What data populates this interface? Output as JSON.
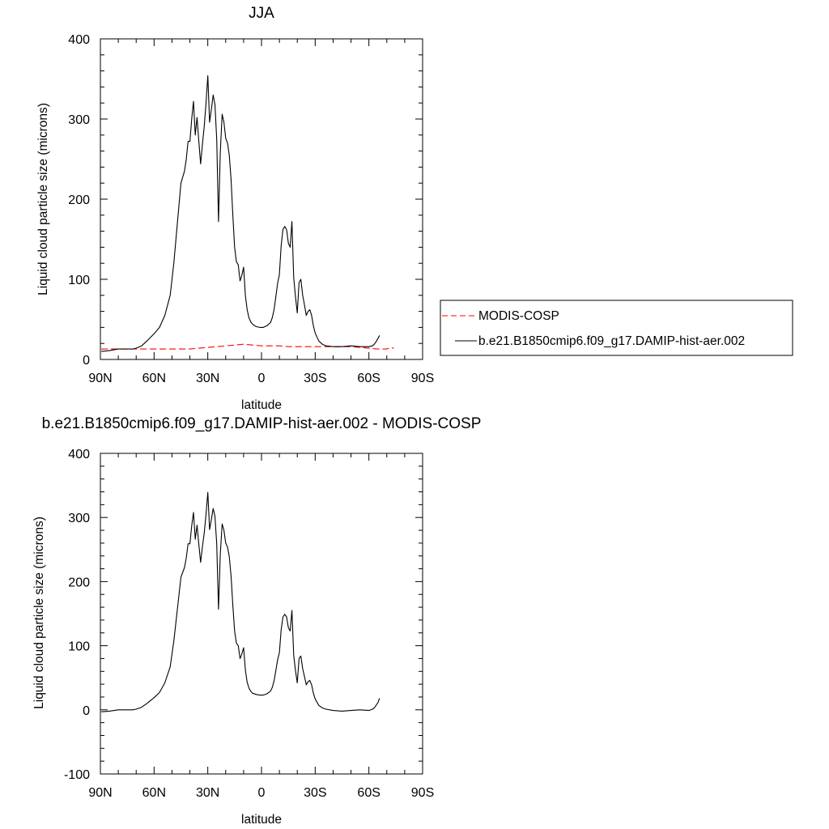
{
  "chart_data": [
    {
      "type": "line",
      "title": "JJA",
      "xlabel": "latitude",
      "ylabel": "Liquid cloud particle size (microns)",
      "xlim": [
        90,
        -90
      ],
      "ylim": [
        0,
        400
      ],
      "xticks": [
        90,
        60,
        30,
        0,
        -30,
        -60,
        -90
      ],
      "xtick_labels": [
        "90N",
        "60N",
        "30N",
        "0",
        "30S",
        "60S",
        "90S"
      ],
      "yticks": [
        0,
        100,
        200,
        300,
        400
      ],
      "ytick_labels": [
        "0",
        "100",
        "200",
        "300",
        "400"
      ],
      "legend_position": "right",
      "series": [
        {
          "name": "MODIS-COSP",
          "color": "#ff0000",
          "dash": "dashed",
          "points": [
            [
              89.5,
              13
            ],
            [
              85,
              13
            ],
            [
              80,
              13
            ],
            [
              75,
              13
            ],
            [
              70,
              13
            ],
            [
              65,
              13
            ],
            [
              60,
              13
            ],
            [
              55,
              13
            ],
            [
              50,
              13
            ],
            [
              45,
              13
            ],
            [
              40,
              13
            ],
            [
              35,
              14
            ],
            [
              30,
              15
            ],
            [
              25,
              16
            ],
            [
              20,
              17
            ],
            [
              15,
              18
            ],
            [
              10,
              19
            ],
            [
              5,
              18
            ],
            [
              0,
              17
            ],
            [
              -5,
              17
            ],
            [
              -10,
              17
            ],
            [
              -15,
              16
            ],
            [
              -20,
              16
            ],
            [
              -25,
              16
            ],
            [
              -30,
              16
            ],
            [
              -35,
              16
            ],
            [
              -40,
              16
            ],
            [
              -45,
              16
            ],
            [
              -50,
              16
            ],
            [
              -55,
              15
            ],
            [
              -60,
              14
            ],
            [
              -65,
              13
            ],
            [
              -70,
              13
            ],
            [
              -72,
              15
            ],
            [
              -74,
              14
            ]
          ]
        },
        {
          "name": "b.e21.B1850cmip6.f09_g17.DAMIP-hist-aer.002",
          "color": "#000000",
          "dash": "solid",
          "points": [
            [
              89.5,
              10
            ],
            [
              85,
              11
            ],
            [
              80,
              13
            ],
            [
              75,
              13
            ],
            [
              72,
              13
            ],
            [
              70,
              14
            ],
            [
              67,
              17
            ],
            [
              64,
              23
            ],
            [
              60,
              32
            ],
            [
              57,
              40
            ],
            [
              54,
              55
            ],
            [
              51,
              80
            ],
            [
              49,
              120
            ],
            [
              47,
              170
            ],
            [
              45,
              220
            ],
            [
              43,
              235
            ],
            [
              42,
              250
            ],
            [
              41,
              272
            ],
            [
              40,
              272
            ],
            [
              39,
              300
            ],
            [
              38,
              322
            ],
            [
              37,
              280
            ],
            [
              36,
              302
            ],
            [
              35,
              272
            ],
            [
              34,
              244
            ],
            [
              33,
              268
            ],
            [
              32,
              290
            ],
            [
              31,
              320
            ],
            [
              30,
              354
            ],
            [
              29,
              296
            ],
            [
              28,
              312
            ],
            [
              27,
              330
            ],
            [
              26,
              318
            ],
            [
              25,
              275
            ],
            [
              24,
              172
            ],
            [
              23,
              258
            ],
            [
              22,
              306
            ],
            [
              21,
              296
            ],
            [
              20,
              276
            ],
            [
              19,
              270
            ],
            [
              18,
              255
            ],
            [
              17,
              225
            ],
            [
              16,
              180
            ],
            [
              15,
              140
            ],
            [
              14,
              122
            ],
            [
              13,
              118
            ],
            [
              12,
              98
            ],
            [
              11,
              105
            ],
            [
              10,
              115
            ],
            [
              9,
              80
            ],
            [
              8,
              62
            ],
            [
              7,
              52
            ],
            [
              6,
              47
            ],
            [
              5,
              44
            ],
            [
              3,
              41
            ],
            [
              1,
              40
            ],
            [
              -1,
              40
            ],
            [
              -3,
              42
            ],
            [
              -5,
              46
            ],
            [
              -6,
              52
            ],
            [
              -7,
              62
            ],
            [
              -8,
              78
            ],
            [
              -9,
              95
            ],
            [
              -10,
              106
            ],
            [
              -11,
              142
            ],
            [
              -12,
              162
            ],
            [
              -13,
              166
            ],
            [
              -14,
              162
            ],
            [
              -15,
              145
            ],
            [
              -16,
              140
            ],
            [
              -17,
              172
            ],
            [
              -18,
              102
            ],
            [
              -19,
              78
            ],
            [
              -20,
              58
            ],
            [
              -21,
              96
            ],
            [
              -22,
              100
            ],
            [
              -23,
              80
            ],
            [
              -24,
              68
            ],
            [
              -25,
              55
            ],
            [
              -26,
              60
            ],
            [
              -27,
              62
            ],
            [
              -28,
              55
            ],
            [
              -29,
              42
            ],
            [
              -30,
              33
            ],
            [
              -31,
              28
            ],
            [
              -32,
              23
            ],
            [
              -34,
              19
            ],
            [
              -36,
              17
            ],
            [
              -40,
              16
            ],
            [
              -45,
              16
            ],
            [
              -50,
              17
            ],
            [
              -55,
              16
            ],
            [
              -60,
              16
            ],
            [
              -62,
              17
            ],
            [
              -63,
              19
            ],
            [
              -64,
              22
            ],
            [
              -65,
              26
            ],
            [
              -66,
              30
            ]
          ]
        }
      ]
    },
    {
      "type": "line",
      "title": "b.e21.B1850cmip6.f09_g17.DAMIP-hist-aer.002 - MODIS-COSP",
      "xlabel": "latitude",
      "ylabel": "Liquid cloud particle size (microns)",
      "xlim": [
        90,
        -90
      ],
      "ylim": [
        -100,
        400
      ],
      "xticks": [
        90,
        60,
        30,
        0,
        -30,
        -60,
        -90
      ],
      "xtick_labels": [
        "90N",
        "60N",
        "30N",
        "0",
        "30S",
        "60S",
        "90S"
      ],
      "yticks": [
        -100,
        0,
        100,
        200,
        300,
        400
      ],
      "ytick_labels": [
        "-100",
        "0",
        "100",
        "200",
        "300",
        "400"
      ],
      "series": [
        {
          "color": "#000000",
          "dash": "solid",
          "points": [
            [
              89.5,
              -3
            ],
            [
              85,
              -2
            ],
            [
              80,
              0
            ],
            [
              75,
              0
            ],
            [
              72,
              0
            ],
            [
              70,
              1
            ],
            [
              67,
              4
            ],
            [
              64,
              10
            ],
            [
              60,
              19
            ],
            [
              57,
              27
            ],
            [
              54,
              42
            ],
            [
              51,
              67
            ],
            [
              49,
              107
            ],
            [
              47,
              157
            ],
            [
              45,
              207
            ],
            [
              43,
              222
            ],
            [
              42,
              237
            ],
            [
              41,
              259
            ],
            [
              40,
              259
            ],
            [
              39,
              287
            ],
            [
              38,
              308
            ],
            [
              37,
              266
            ],
            [
              36,
              288
            ],
            [
              35,
              258
            ],
            [
              34,
              230
            ],
            [
              33,
              254
            ],
            [
              32,
              275
            ],
            [
              31,
              305
            ],
            [
              30,
              339
            ],
            [
              29,
              281
            ],
            [
              28,
              297
            ],
            [
              27,
              314
            ],
            [
              26,
              302
            ],
            [
              25,
              259
            ],
            [
              24,
              157
            ],
            [
              23,
              242
            ],
            [
              22,
              290
            ],
            [
              21,
              280
            ],
            [
              20,
              260
            ],
            [
              19,
              254
            ],
            [
              18,
              239
            ],
            [
              17,
              209
            ],
            [
              16,
              163
            ],
            [
              15,
              123
            ],
            [
              14,
              104
            ],
            [
              13,
              100
            ],
            [
              12,
              80
            ],
            [
              11,
              87
            ],
            [
              10,
              97
            ],
            [
              9,
              62
            ],
            [
              8,
              43
            ],
            [
              7,
              34
            ],
            [
              6,
              29
            ],
            [
              5,
              26
            ],
            [
              3,
              24
            ],
            [
              1,
              23
            ],
            [
              -1,
              23
            ],
            [
              -3,
              25
            ],
            [
              -5,
              29
            ],
            [
              -6,
              35
            ],
            [
              -7,
              45
            ],
            [
              -8,
              61
            ],
            [
              -9,
              78
            ],
            [
              -10,
              89
            ],
            [
              -11,
              125
            ],
            [
              -12,
              145
            ],
            [
              -13,
              149
            ],
            [
              -14,
              145
            ],
            [
              -15,
              128
            ],
            [
              -16,
              123
            ],
            [
              -17,
              155
            ],
            [
              -18,
              85
            ],
            [
              -19,
              61
            ],
            [
              -20,
              42
            ],
            [
              -21,
              80
            ],
            [
              -22,
              84
            ],
            [
              -23,
              64
            ],
            [
              -24,
              52
            ],
            [
              -25,
              39
            ],
            [
              -26,
              44
            ],
            [
              -27,
              46
            ],
            [
              -28,
              39
            ],
            [
              -29,
              26
            ],
            [
              -30,
              17
            ],
            [
              -31,
              12
            ],
            [
              -32,
              7
            ],
            [
              -34,
              3
            ],
            [
              -36,
              1
            ],
            [
              -40,
              -1
            ],
            [
              -45,
              -2
            ],
            [
              -50,
              -1
            ],
            [
              -55,
              0
            ],
            [
              -60,
              -1
            ],
            [
              -62,
              1
            ],
            [
              -63,
              3
            ],
            [
              -64,
              7
            ],
            [
              -65,
              11
            ],
            [
              -66,
              18
            ]
          ]
        }
      ]
    }
  ]
}
